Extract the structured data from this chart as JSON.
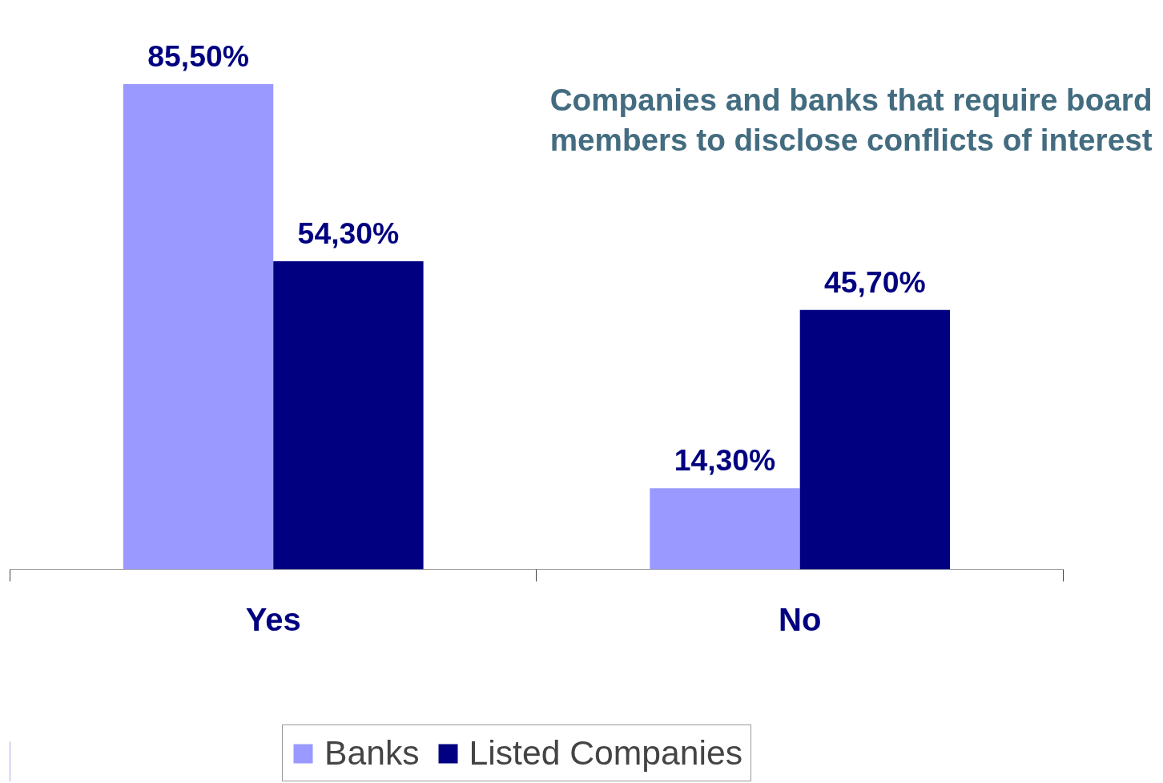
{
  "chart_data": {
    "type": "bar",
    "title": "Companies and banks that require board members to disclose conflicts of interest",
    "categories": [
      "Yes",
      "No"
    ],
    "series": [
      {
        "name": "Banks",
        "color": "#9999ff",
        "values": [
          85.5,
          14.3
        ],
        "value_labels": [
          "85,50%",
          "14,30%"
        ]
      },
      {
        "name": "Listed Companies",
        "color": "#000080",
        "values": [
          54.3,
          45.7
        ],
        "value_labels": [
          "54,30%",
          "45,70%"
        ]
      }
    ],
    "legend": "bottom",
    "grid": false
  }
}
